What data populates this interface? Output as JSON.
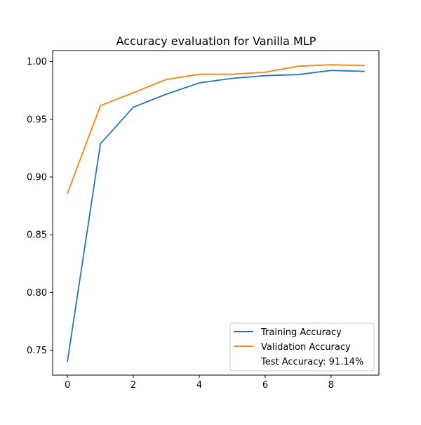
{
  "chart_data": {
    "type": "line",
    "title": "Accuracy evaluation for Vanilla MLP",
    "xlabel": "",
    "ylabel": "",
    "x": [
      0,
      1,
      2,
      3,
      4,
      5,
      6,
      7,
      8,
      9
    ],
    "xlim": [
      -0.45,
      9.45
    ],
    "ylim": [
      0.7285,
      1.0095
    ],
    "xticks": [
      0,
      2,
      4,
      6,
      8
    ],
    "xtick_labels": [
      "0",
      "2",
      "4",
      "6",
      "8"
    ],
    "yticks": [
      0.75,
      0.8,
      0.85,
      0.9,
      0.95,
      1.0
    ],
    "ytick_labels": [
      "0.75",
      "0.80",
      "0.85",
      "0.90",
      "0.95",
      "1.00"
    ],
    "grid": false,
    "legend_position": "lower-right",
    "series": [
      {
        "name": "Training Accuracy",
        "color": "#1f77b4",
        "values": [
          0.7405,
          0.9288,
          0.9605,
          0.9718,
          0.9815,
          0.9855,
          0.9878,
          0.9887,
          0.9923,
          0.9915
        ]
      },
      {
        "name": "Validation Accuracy",
        "color": "#ff7f0e",
        "values": [
          0.8858,
          0.9618,
          0.973,
          0.9845,
          0.989,
          0.989,
          0.9908,
          0.996,
          0.9972,
          0.9965
        ]
      }
    ],
    "legend_extra": "Test Accuracy: 91.14%"
  }
}
